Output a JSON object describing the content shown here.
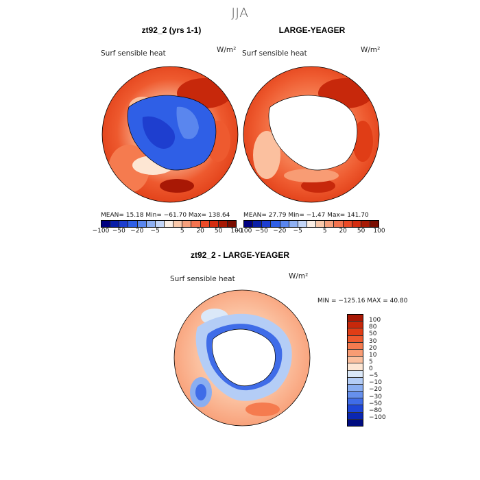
{
  "season": "JJA",
  "panel_left": {
    "title": "zt92_2 (yrs 1-1)",
    "variable": "Surf sensible heat",
    "unit": "W/m²",
    "stats": "MEAN=  15.18  Min= −61.70  Max= 138.64"
  },
  "panel_right": {
    "title": "LARGE-YEAGER",
    "variable": "Surf sensible heat",
    "unit": "W/m²",
    "stats": "MEAN=  27.79  Min=  −1.47  Max= 141.70"
  },
  "panel_diff": {
    "title": "zt92_2 - LARGE-YEAGER",
    "variable": "Surf sensible heat",
    "unit": "W/m²",
    "stats": "MIN = −125.16 MAX =  40.80"
  },
  "colorbar_top": {
    "colors": [
      "#000080",
      "#0a1fa8",
      "#1e3ecf",
      "#2f5fe6",
      "#5a86ee",
      "#8fb0f2",
      "#c3d5f7",
      "#fbeee4",
      "#f9c8aa",
      "#f6a07c",
      "#f2734f",
      "#ea4a27",
      "#d42d10",
      "#a81a05",
      "#7a0d00"
    ],
    "ticks": [
      "−100",
      "−50",
      "−20",
      "−5",
      "5",
      "20",
      "50",
      "100"
    ]
  },
  "colorbar_diff": {
    "colors": [
      "#a81805",
      "#c7280b",
      "#e03d16",
      "#ee5a2f",
      "#f57b4f",
      "#f89c74",
      "#fbc09f",
      "#fde6d3",
      "#dbe8f8",
      "#b4cdf6",
      "#8aaef1",
      "#6690ed",
      "#3f6ce8",
      "#1e46d7",
      "#0b27b2",
      "#000c80"
    ],
    "ticks": [
      "100",
      "80",
      "50",
      "30",
      "20",
      "10",
      "5",
      "0",
      "−5",
      "−10",
      "−20",
      "−30",
      "−50",
      "−80",
      "−100"
    ]
  },
  "chart_data": [
    {
      "type": "heatmap",
      "title": "zt92_2 (yrs 1-1)",
      "variable": "Surf sensible heat",
      "units": "W/m²",
      "projection": "south polar stereographic",
      "stats": {
        "mean": 15.18,
        "min": -61.7,
        "max": 138.64
      },
      "levels": [
        -100,
        -50,
        -20,
        -5,
        5,
        20,
        50,
        100
      ]
    },
    {
      "type": "heatmap",
      "title": "LARGE-YEAGER",
      "variable": "Surf sensible heat",
      "units": "W/m²",
      "projection": "south polar stereographic",
      "stats": {
        "mean": 27.79,
        "min": -1.47,
        "max": 141.7
      },
      "levels": [
        -100,
        -50,
        -20,
        -5,
        5,
        20,
        50,
        100
      ]
    },
    {
      "type": "heatmap",
      "title": "zt92_2 - LARGE-YEAGER",
      "variable": "Surf sensible heat",
      "units": "W/m²",
      "projection": "south polar stereographic",
      "stats": {
        "min": -125.16,
        "max": 40.8
      },
      "levels": [
        100,
        80,
        50,
        30,
        20,
        10,
        5,
        0,
        -5,
        -10,
        -20,
        -30,
        -50,
        -80,
        -100
      ]
    }
  ]
}
